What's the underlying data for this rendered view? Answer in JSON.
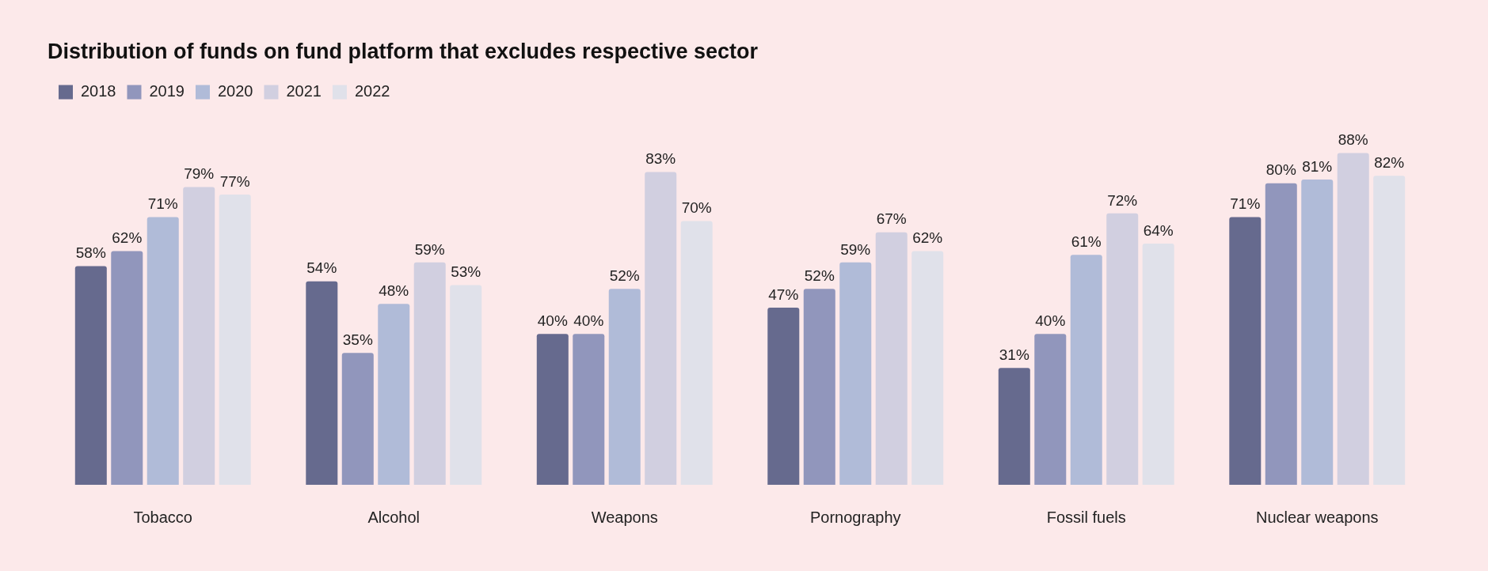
{
  "chart_data": {
    "type": "bar",
    "title": "Distribution of funds on fund platform that excludes respective sector",
    "categories": [
      "Tobacco",
      "Alcohol",
      "Weapons",
      "Pornography",
      "Fossil fuels",
      "Nuclear weapons"
    ],
    "series": [
      {
        "name": "2018",
        "color": "#666a8e",
        "values": [
          58,
          54,
          40,
          47,
          31,
          71
        ],
        "value_labels": [
          "58%",
          "54%",
          "40%",
          "47%",
          "31%",
          "71%"
        ]
      },
      {
        "name": "2019",
        "color": "#9196bc",
        "values": [
          62,
          35,
          40,
          52,
          40,
          80
        ],
        "value_labels": [
          "62%",
          "35%",
          "40%",
          "52%",
          "40%",
          "80%"
        ]
      },
      {
        "name": "2020",
        "color": "#b0bbd8",
        "values": [
          71,
          48,
          52,
          59,
          61,
          81
        ],
        "value_labels": [
          "71%",
          "48%",
          "52%",
          "59%",
          "61%",
          "81%"
        ]
      },
      {
        "name": "2021",
        "color": "#d1cfe0",
        "values": [
          79,
          59,
          83,
          67,
          72,
          88
        ],
        "value_labels": [
          "79%",
          "59%",
          "83%",
          "67%",
          "72%",
          "88%"
        ]
      },
      {
        "name": "2022",
        "color": "#e0e1ea",
        "values": [
          77,
          53,
          70,
          62,
          64,
          82
        ],
        "value_labels": [
          "77%",
          "53%",
          "70%",
          "62%",
          "64%",
          "82%"
        ]
      }
    ],
    "legend": "top left",
    "tick_labels": "x"
  }
}
